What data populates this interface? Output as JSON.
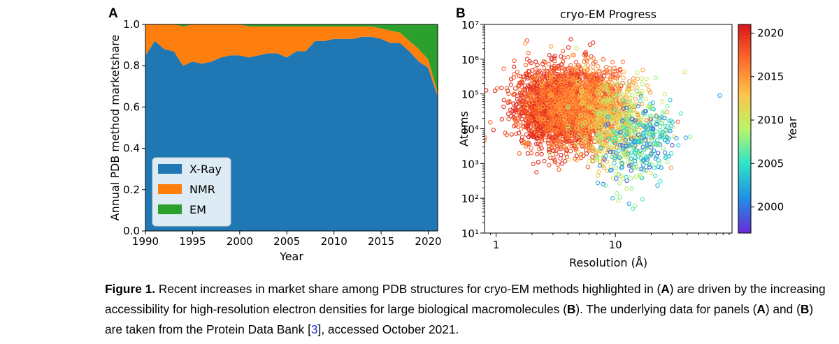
{
  "chart_data": [
    {
      "type": "area",
      "panel_label": "A",
      "title": "",
      "xlabel": "Year",
      "ylabel": "Annual PDB method marketshare",
      "xlim": [
        1990,
        2021
      ],
      "ylim": [
        0.0,
        1.0
      ],
      "x_ticks": [
        "1990",
        "1995",
        "2000",
        "2005",
        "2010",
        "2015",
        "2020"
      ],
      "y_ticks": [
        "0.0",
        "0.2",
        "0.4",
        "0.6",
        "0.8",
        "1.0"
      ],
      "legend_position": "lower-left",
      "x": [
        1990,
        1991,
        1992,
        1993,
        1994,
        1995,
        1996,
        1997,
        1998,
        1999,
        2000,
        2001,
        2002,
        2003,
        2004,
        2005,
        2006,
        2007,
        2008,
        2009,
        2010,
        2011,
        2012,
        2013,
        2014,
        2015,
        2016,
        2017,
        2018,
        2019,
        2020,
        2021
      ],
      "series": [
        {
          "name": "X-Ray",
          "color": "#1f77b4",
          "values": [
            0.85,
            0.92,
            0.88,
            0.87,
            0.8,
            0.82,
            0.81,
            0.82,
            0.84,
            0.85,
            0.85,
            0.84,
            0.85,
            0.86,
            0.86,
            0.84,
            0.87,
            0.87,
            0.92,
            0.92,
            0.93,
            0.93,
            0.93,
            0.94,
            0.94,
            0.93,
            0.91,
            0.91,
            0.87,
            0.82,
            0.79,
            0.65
          ]
        },
        {
          "name": "NMR",
          "color": "#ff7f0e",
          "values": [
            0.15,
            0.08,
            0.12,
            0.13,
            0.19,
            0.18,
            0.19,
            0.18,
            0.16,
            0.15,
            0.15,
            0.15,
            0.14,
            0.13,
            0.13,
            0.15,
            0.12,
            0.12,
            0.07,
            0.07,
            0.06,
            0.06,
            0.06,
            0.05,
            0.05,
            0.05,
            0.06,
            0.05,
            0.05,
            0.06,
            0.04,
            0.02
          ]
        },
        {
          "name": "EM",
          "color": "#2ca02c",
          "values": [
            0.0,
            0.0,
            0.0,
            0.0,
            0.01,
            0.0,
            0.0,
            0.0,
            0.0,
            0.0,
            0.0,
            0.01,
            0.01,
            0.01,
            0.01,
            0.01,
            0.01,
            0.01,
            0.01,
            0.01,
            0.01,
            0.01,
            0.01,
            0.01,
            0.01,
            0.02,
            0.03,
            0.04,
            0.08,
            0.12,
            0.17,
            0.33
          ]
        }
      ]
    },
    {
      "type": "scatter",
      "panel_label": "B",
      "title": "cryo-EM Progress",
      "xlabel": "Resolution (Å)",
      "ylabel": "Atoms",
      "x_scale": "log",
      "y_scale": "log",
      "xlim": [
        0.8,
        95
      ],
      "ylim": [
        10,
        10000000
      ],
      "x_ticks": [
        "1",
        "10"
      ],
      "y_ticks": [
        "10¹",
        "10²",
        "10³",
        "10⁴",
        "10⁵",
        "10⁶",
        "10⁷"
      ],
      "colorbar": {
        "label": "Year",
        "min": 1997,
        "max": 2021,
        "ticks": [
          "2000",
          "2005",
          "2010",
          "2015",
          "2020"
        ]
      },
      "colormap": [
        "#6a2bd8",
        "#1f8fe6",
        "#2fe3c8",
        "#b9f56a",
        "#ffc24a",
        "#ff6a2a",
        "#d8161b"
      ],
      "marker": "open-circle",
      "clusters": [
        {
          "year_range": [
            2017,
            2021
          ],
          "res_center": 3.6,
          "res_spread": 0.35,
          "atoms_center": 40000,
          "atoms_spread": 0.55,
          "count": 2400
        },
        {
          "year_range": [
            2014,
            2018
          ],
          "res_center": 5.0,
          "res_spread": 0.35,
          "atoms_center": 50000,
          "atoms_spread": 0.55,
          "count": 900
        },
        {
          "year_range": [
            2008,
            2015
          ],
          "res_center": 10.0,
          "res_spread": 0.3,
          "atoms_center": 15000,
          "atoms_spread": 0.6,
          "count": 500
        },
        {
          "year_range": [
            1998,
            2010
          ],
          "res_center": 14.0,
          "res_spread": 0.25,
          "atoms_center": 3000,
          "atoms_spread": 0.6,
          "count": 220
        },
        {
          "year_range": [
            2001,
            2008
          ],
          "res_center": 22.0,
          "res_spread": 0.2,
          "atoms_center": 8000,
          "atoms_spread": 0.5,
          "count": 90
        }
      ],
      "notable_points": [
        {
          "resolution": 3.5,
          "atoms": 1200000,
          "year": 2020
        },
        {
          "resolution": 13.0,
          "atoms": 70,
          "year": 2002
        },
        {
          "resolution": 14.0,
          "atoms": 50,
          "year": 2006
        },
        {
          "resolution": 75.0,
          "atoms": 90000,
          "year": 2001
        },
        {
          "resolution": 38.0,
          "atoms": 430000,
          "year": 2012
        }
      ]
    }
  ],
  "caption": {
    "figure_label": "Figure 1.",
    "line1": "Recent increases in market share among PDB structures for cryo-EM methods highlighted in (",
    "line1_bold": "A",
    "line1_end": ") are driven by the",
    "line2a": "increasing accessibility for high-resolution electron densities for large biological macromolecules (",
    "line2_bold": "B",
    "line2b": "). The underlying data for",
    "line3a": "panels (",
    "line3_bold1": "A",
    "line3b": ") and (",
    "line3_bold2": "B",
    "line3c": ") are taken from the Protein Data Bank [",
    "ref": "3",
    "line3d": "], accessed October 2021."
  }
}
